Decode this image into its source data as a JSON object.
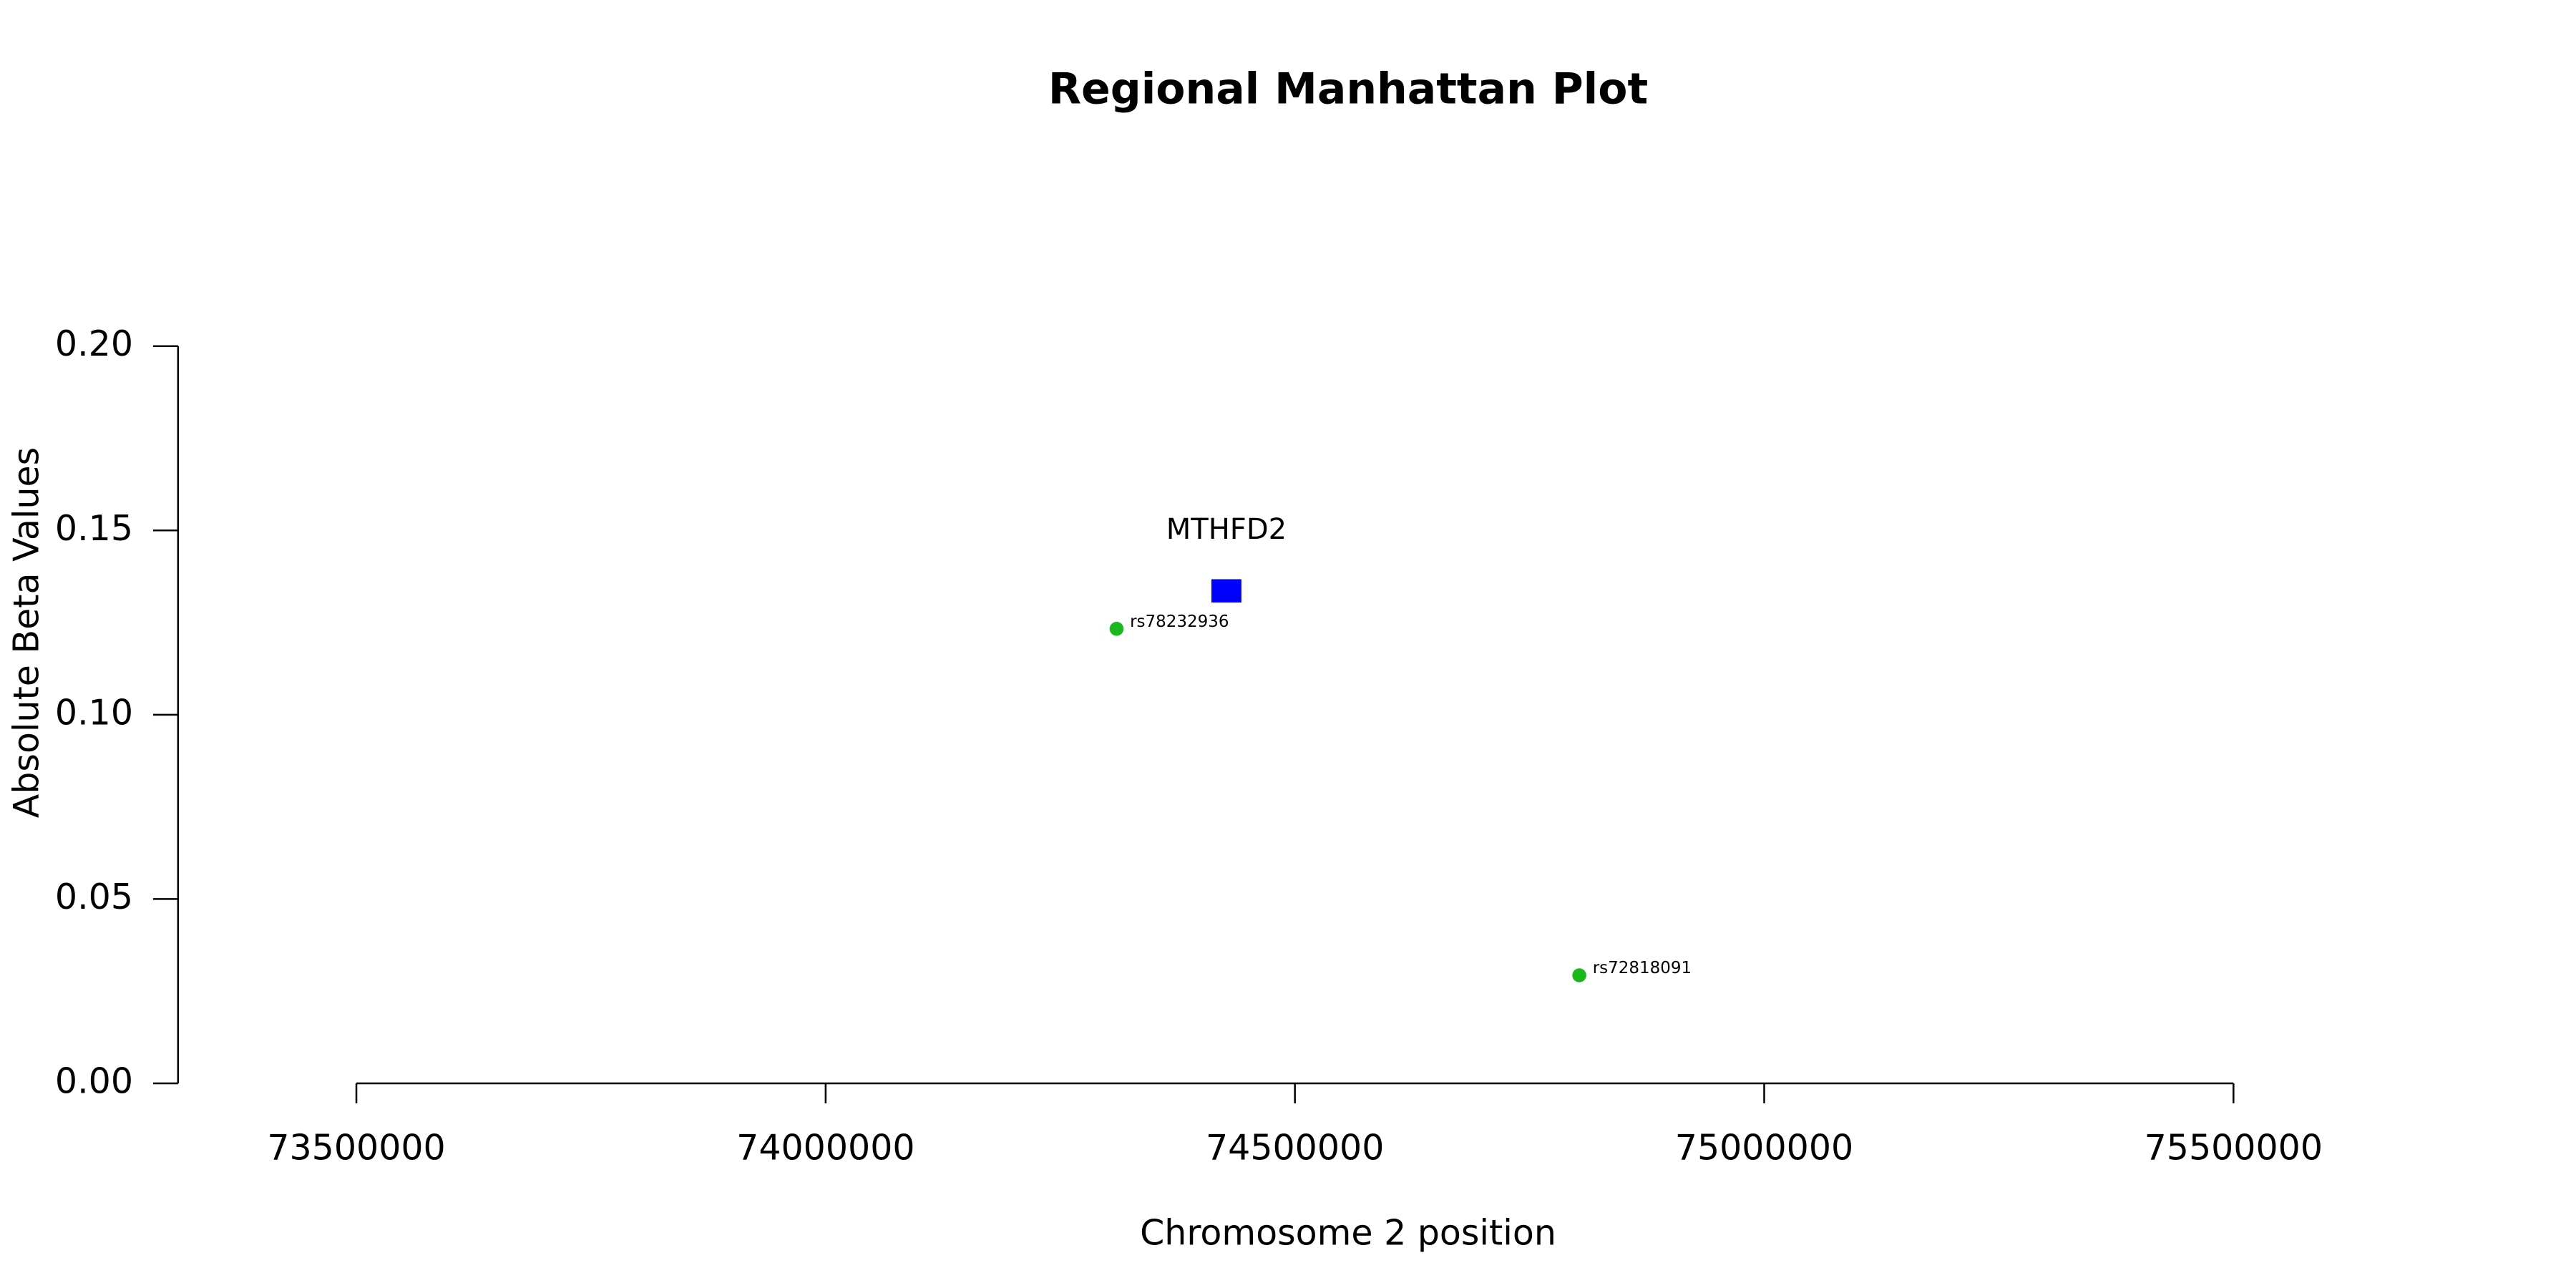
{
  "chart_data": {
    "type": "scatter",
    "title": "Regional Manhattan Plot",
    "x_label": "Chromosome 2 position",
    "y_label": "Absolute Beta Values",
    "xlim": [
      73310000,
      75810000
    ],
    "ylim": [
      0,
      0.2
    ],
    "xticks": [
      73500000,
      74000000,
      74500000,
      75000000,
      75500000
    ],
    "yticks": [
      {
        "value": 0,
        "label": "0.00"
      },
      {
        "value": 0.05,
        "label": "0.05"
      },
      {
        "value": 0.1,
        "label": "0.10"
      },
      {
        "value": 0.15,
        "label": "0.15"
      },
      {
        "value": 0.2,
        "label": "0.20"
      }
    ],
    "points": {
      "color": "#1ab81a",
      "x": [
        74310000,
        74803000
      ],
      "values": [
        0.1233,
        0.0293
      ],
      "labels": [
        "rs78232936",
        "rs72818091"
      ]
    },
    "gene": {
      "color": "#0000ff",
      "label": "MTHFD2",
      "x": 74427000,
      "value": 0.1336
    }
  }
}
